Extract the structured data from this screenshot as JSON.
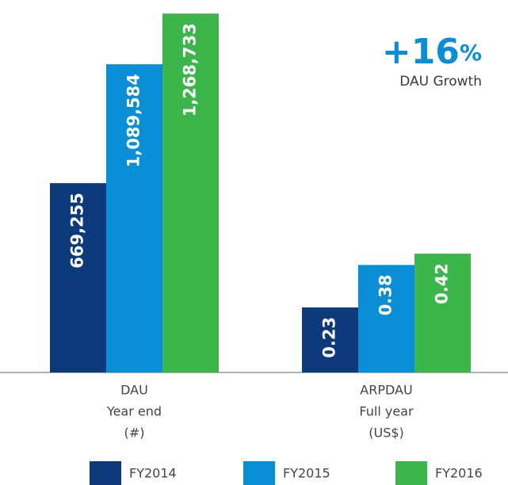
{
  "annotation": {
    "number": "+16",
    "unit": "%",
    "caption": "DAU Growth",
    "color": "#0a8fd6"
  },
  "chart_data": [
    {
      "type": "bar",
      "categories": [
        "DAU"
      ],
      "category_notes": [
        "Year end",
        "(#)"
      ],
      "ylim": [
        0,
        1300000
      ],
      "series": [
        {
          "name": "FY2014",
          "color": "#0d3a7a",
          "values": [
            669255
          ],
          "value_labels": [
            "669,255"
          ]
        },
        {
          "name": "FY2015",
          "color": "#0a8fd6",
          "values": [
            1089584
          ],
          "value_labels": [
            "1,089,584"
          ]
        },
        {
          "name": "FY2016",
          "color": "#3cb54a",
          "values": [
            1268733
          ],
          "value_labels": [
            "1,268,733"
          ]
        }
      ]
    },
    {
      "type": "bar",
      "categories": [
        "ARPDAU"
      ],
      "category_notes": [
        "Full year",
        "(US$)"
      ],
      "ylim": [
        0,
        1.3
      ],
      "series": [
        {
          "color": "#0d3a7a",
          "values": [
            0.23
          ]
        },
        {
          "color": "#0a8fd6",
          "values": [
            0.38
          ]
        },
        {
          "color": "#3cb54a",
          "values": [
            0.42
          ]
        }
      ]
    }
  ]
}
